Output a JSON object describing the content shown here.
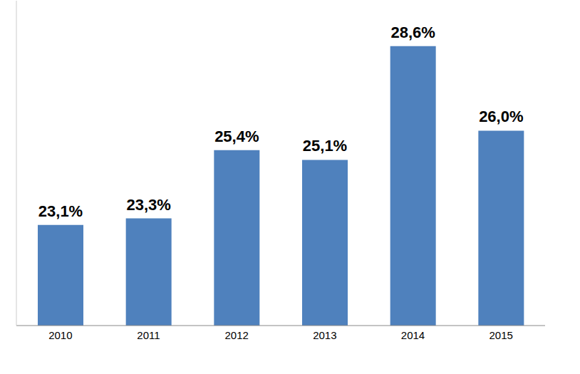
{
  "chart_data": {
    "type": "bar",
    "categories": [
      "2010",
      "2011",
      "2012",
      "2013",
      "2014",
      "2015"
    ],
    "values": [
      23.1,
      23.3,
      25.4,
      25.1,
      28.6,
      26.0
    ],
    "value_labels": [
      "23,1%",
      "23,3%",
      "25,4%",
      "25,1%",
      "28,6%",
      "26,0%"
    ],
    "color": "#4f81bd",
    "ylim": [
      20,
      30
    ],
    "data_labels": true,
    "tick_labels": "x"
  }
}
